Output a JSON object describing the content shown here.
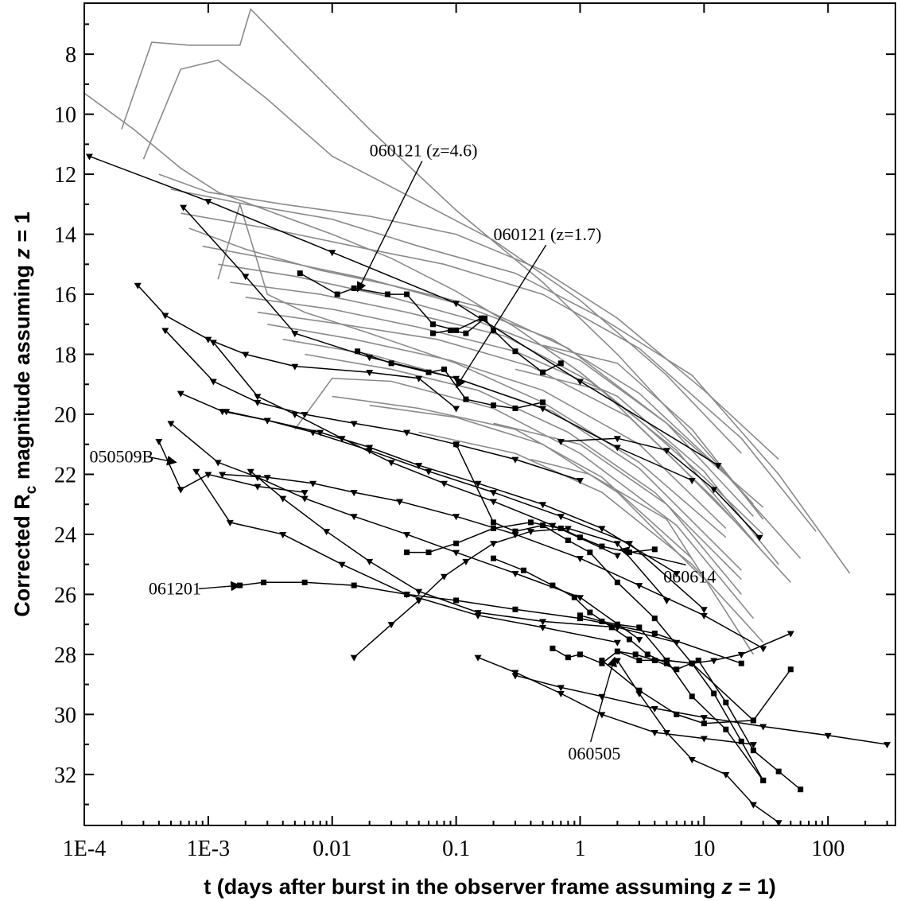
{
  "chart_data": {
    "type": "line",
    "title": "",
    "xlabel_prefix": "t (days after burst in the observer frame assuming ",
    "xlabel_z": "z",
    "xlabel_suffix": " = 1)",
    "ylabel_prefix": "Corrected R",
    "ylabel_sub": "c",
    "ylabel_mid": " magnitude assuming ",
    "ylabel_z": "z",
    "ylabel_suffix": " = 1",
    "xscale": "log",
    "xlim": [
      0.0001,
      350
    ],
    "ylim": [
      33.7,
      6.3
    ],
    "y_inverted": true,
    "x_ticks": [
      0.0001,
      0.001,
      0.01,
      0.1,
      1,
      10,
      100
    ],
    "x_tick_labels": [
      "1E-4",
      "1E-3",
      "0.01",
      "0.1",
      "1",
      "10",
      "100"
    ],
    "y_ticks": [
      8,
      10,
      12,
      14,
      16,
      18,
      20,
      22,
      24,
      26,
      28,
      30,
      32
    ],
    "y_tick_labels": [
      "8",
      "10",
      "12",
      "14",
      "16",
      "18",
      "20",
      "22",
      "24",
      "26",
      "28",
      "30",
      "32"
    ],
    "legend": "none",
    "grid": false,
    "colors": {
      "pre_swift": "#8a8a8a",
      "swift": "#000000"
    },
    "annotations": [
      {
        "label": "060121 (z=4.6)",
        "text_x": 0.02,
        "text_y": 11.4,
        "tip_x": 0.016,
        "tip_y": 15.9
      },
      {
        "label": "060121 (z=1.7)",
        "text_x": 0.2,
        "text_y": 14.2,
        "tip_x": 0.1,
        "tip_y": 19.1
      },
      {
        "label": "050509B",
        "text_x": 0.00011,
        "text_y": 21.6,
        "tip_x": 0.00055,
        "tip_y": 21.6
      },
      {
        "label": "060614",
        "text_x": 4.7,
        "text_y": 25.6,
        "tip_x": 2.1,
        "tip_y": 24.5
      },
      {
        "label": "061201",
        "text_x": 0.00033,
        "text_y": 26.0,
        "tip_x": 0.0018,
        "tip_y": 25.7
      },
      {
        "label": "060505",
        "text_x": 0.8,
        "text_y": 31.5,
        "tip_x": 1.9,
        "tip_y": 28.1
      }
    ],
    "gray_series": [
      {
        "x": [
          0.0001,
          0.00025,
          0.0006,
          0.0012,
          0.004,
          0.01,
          0.03,
          0.1,
          0.3,
          1,
          3,
          10,
          30
        ],
        "y": [
          9.3,
          10.5,
          11.8,
          12.6,
          13.4,
          14.0,
          14.8,
          15.9,
          17.1,
          18.6,
          20.2,
          22.1,
          24.0
        ]
      },
      {
        "x": [
          0.0002,
          0.00035,
          0.0007,
          0.0018,
          0.0022,
          0.005,
          0.02,
          0.1,
          0.5,
          2,
          8,
          25
        ],
        "y": [
          10.5,
          7.6,
          7.7,
          7.7,
          6.5,
          8.0,
          10.5,
          13.2,
          15.6,
          18.0,
          20.7,
          23.0
        ]
      },
      {
        "x": [
          0.0003,
          0.0006,
          0.0012,
          0.003,
          0.01,
          0.05,
          0.2,
          1,
          5,
          20
        ],
        "y": [
          11.5,
          8.5,
          8.2,
          9.5,
          11.4,
          12.9,
          14.2,
          16.2,
          18.7,
          21.3
        ]
      },
      {
        "x": [
          0.0004,
          0.001,
          0.004,
          0.02,
          0.1,
          0.5,
          2,
          10,
          40
        ],
        "y": [
          12.0,
          12.6,
          13.0,
          13.4,
          14.0,
          15.2,
          16.8,
          19.2,
          21.5
        ]
      },
      {
        "x": [
          0.0005,
          0.002,
          0.01,
          0.05,
          0.3,
          1.5,
          8,
          40,
          150
        ],
        "y": [
          12.5,
          13.0,
          13.5,
          14.4,
          15.3,
          16.8,
          18.7,
          22.0,
          25.3
        ]
      },
      {
        "x": [
          0.0006,
          0.003,
          0.015,
          0.08,
          0.5,
          3,
          20,
          80
        ],
        "y": [
          13.3,
          13.8,
          14.4,
          15.0,
          16.0,
          17.8,
          20.8,
          23.9
        ]
      },
      {
        "x": [
          0.0007,
          0.002,
          0.008,
          0.03,
          0.15,
          0.8,
          5,
          30
        ],
        "y": [
          13.8,
          14.5,
          15.2,
          15.7,
          16.4,
          17.8,
          20.3,
          23.1
        ]
      },
      {
        "x": [
          0.0009,
          0.004,
          0.02,
          0.1,
          0.6,
          3,
          15,
          60
        ],
        "y": [
          14.4,
          14.9,
          15.5,
          16.3,
          17.5,
          19.3,
          22.0,
          24.8
        ]
      },
      {
        "x": [
          0.0012,
          0.005,
          0.03,
          0.15,
          1,
          5,
          25
        ],
        "y": [
          15.0,
          15.4,
          16.1,
          16.9,
          18.2,
          20.3,
          23.4
        ]
      },
      {
        "x": [
          0.0015,
          0.008,
          0.04,
          0.25,
          1.2,
          6,
          30
        ],
        "y": [
          15.6,
          16.0,
          16.6,
          17.4,
          18.9,
          21.2,
          24.6
        ]
      },
      {
        "x": [
          0.002,
          0.01,
          0.05,
          0.3,
          2,
          10,
          40
        ],
        "y": [
          16.1,
          16.5,
          17.1,
          17.9,
          19.4,
          21.9,
          25.0
        ]
      },
      {
        "x": [
          0.0025,
          0.012,
          0.07,
          0.4,
          2.5,
          12,
          50
        ],
        "y": [
          16.6,
          17.0,
          17.5,
          18.4,
          20.1,
          22.8,
          25.6
        ]
      },
      {
        "x": [
          0.003,
          0.015,
          0.09,
          0.5,
          3,
          15
        ],
        "y": [
          17.0,
          17.5,
          18.2,
          19.2,
          21.0,
          23.8
        ]
      },
      {
        "x": [
          0.0012,
          0.0018,
          0.003,
          0.006,
          0.02,
          0.1,
          0.5,
          3,
          15
        ],
        "y": [
          15.5,
          13.0,
          16.0,
          16.6,
          17.3,
          18.3,
          19.6,
          21.6,
          24.1
        ]
      },
      {
        "x": [
          0.004,
          0.02,
          0.1,
          0.6,
          3,
          20
        ],
        "y": [
          17.5,
          18.0,
          18.8,
          19.9,
          21.8,
          25.2
        ]
      },
      {
        "x": [
          0.006,
          0.03,
          0.15,
          0.8,
          4,
          20
        ],
        "y": [
          18.0,
          18.5,
          19.2,
          20.6,
          22.6,
          25.5
        ]
      },
      {
        "x": [
          0.005,
          0.01,
          0.03,
          0.2,
          1,
          6,
          25
        ],
        "y": [
          20.5,
          18.8,
          18.9,
          19.8,
          21.3,
          23.7,
          26.8
        ]
      },
      {
        "x": [
          0.01,
          0.05,
          0.3,
          1.5,
          8
        ],
        "y": [
          19.4,
          19.8,
          20.5,
          22.1,
          24.8
        ]
      },
      {
        "x": [
          0.02,
          0.1,
          0.5,
          2,
          10
        ],
        "y": [
          19.7,
          20.1,
          21.0,
          22.6,
          25.5
        ]
      },
      {
        "x": [
          0.05,
          0.3,
          1.5,
          8,
          30
        ],
        "y": [
          20.6,
          21.3,
          22.6,
          25.0,
          27.6
        ]
      },
      {
        "x": [
          0.2,
          1,
          5,
          20
        ],
        "y": [
          20.3,
          21.0,
          23.0,
          26.0
        ]
      },
      {
        "x": [
          0.3,
          1.5,
          6,
          25
        ],
        "y": [
          18.5,
          19.2,
          21.6,
          24.2
        ]
      },
      {
        "x": [
          0.5,
          2,
          8,
          30
        ],
        "y": [
          17.7,
          18.3,
          20.5,
          23.5
        ]
      },
      {
        "x": [
          0.4,
          1.2,
          5,
          25
        ],
        "y": [
          21.5,
          22.0,
          23.5,
          28.0
        ]
      }
    ],
    "black_series": [
      {
        "x": [
          0.00011,
          0.001,
          0.01,
          0.1,
          1,
          13
        ],
        "y": [
          11.4,
          12.9,
          14.6,
          16.3,
          18.9,
          21.7
        ],
        "marker": "tri"
      },
      {
        "x": [
          0.00063,
          0.002,
          0.005,
          0.02,
          0.1,
          0.5,
          2,
          8
        ],
        "y": [
          13.1,
          15.4,
          17.3,
          18.1,
          18.8,
          19.8,
          21.1,
          22.2
        ],
        "marker": "tri"
      },
      {
        "x": [
          0.0055,
          0.011,
          0.015,
          0.028,
          0.04,
          0.065,
          0.1,
          0.16
        ],
        "y": [
          15.3,
          16.0,
          15.8,
          16.0,
          16.0,
          17.0,
          17.2,
          16.8
        ],
        "marker": "sq"
      },
      {
        "x": [
          0.065,
          0.09,
          0.12,
          0.17,
          0.2,
          0.3,
          0.5,
          0.7
        ],
        "y": [
          17.3,
          17.2,
          17.3,
          16.8,
          17.2,
          17.9,
          18.6,
          18.3
        ],
        "marker": "sq"
      },
      {
        "x": [
          0.00027,
          0.00045,
          0.001,
          0.002,
          0.005,
          0.02,
          0.05,
          0.1
        ],
        "y": [
          15.7,
          16.7,
          17.5,
          18.0,
          18.4,
          18.6,
          18.8,
          19.8
        ],
        "marker": "tri"
      },
      {
        "x": [
          0.016,
          0.03,
          0.06,
          0.08,
          0.12,
          0.2,
          0.3,
          0.5
        ],
        "y": [
          17.9,
          18.3,
          18.6,
          18.5,
          19.5,
          19.7,
          19.8,
          19.6
        ],
        "marker": "sq"
      },
      {
        "x": [
          0.00045,
          0.0011,
          0.0025,
          0.006,
          0.015,
          0.04,
          0.1,
          0.3,
          1
        ],
        "y": [
          17.2,
          18.9,
          19.6,
          20.0,
          20.3,
          20.6,
          21.0,
          21.5,
          22.2
        ],
        "marker": "tri"
      },
      {
        "x": [
          0.0006,
          0.0013,
          0.003,
          0.008,
          0.02,
          0.05,
          0.15,
          0.5,
          1.5,
          6
        ],
        "y": [
          19.3,
          19.9,
          20.2,
          20.6,
          21.1,
          21.7,
          22.3,
          23.0,
          23.8,
          25.3
        ],
        "marker": "tri"
      },
      {
        "x": [
          0.0011,
          0.0025,
          0.005,
          0.012,
          0.03,
          0.08,
          0.2,
          0.6,
          2
        ],
        "y": [
          17.6,
          19.4,
          20.0,
          20.8,
          21.6,
          22.3,
          22.9,
          23.7,
          24.7
        ],
        "marker": "tri"
      },
      {
        "x": [
          0.0014,
          0.003,
          0.007,
          0.02,
          0.06,
          0.2,
          0.7,
          2.5,
          10
        ],
        "y": [
          19.9,
          20.2,
          20.6,
          21.2,
          21.9,
          22.6,
          23.4,
          24.3,
          26.5
        ],
        "marker": "tri"
      },
      {
        "x": [
          0.0004,
          0.0006
        ],
        "y": [
          20.9,
          22.5
        ],
        "marker": "tri"
      },
      {
        "x": [
          0.0006,
          0.001,
          0.0025,
          0.006
        ],
        "y": [
          22.5,
          22.0,
          22.4,
          22.6
        ],
        "marker": "tri"
      },
      {
        "x": [
          0.0005,
          0.0012,
          0.0025,
          0.006,
          0.015,
          0.04,
          0.1,
          0.3,
          1,
          3
        ],
        "y": [
          20.3,
          21.6,
          22.1,
          22.8,
          23.4,
          24.0,
          24.6,
          25.3,
          26.1,
          27.5
        ],
        "marker": "tri"
      },
      {
        "x": [
          0.0008,
          0.0015,
          0.004,
          0.012,
          0.04,
          0.15,
          0.5,
          2
        ],
        "y": [
          21.9,
          23.6,
          24.0,
          25.0,
          26.0,
          26.7,
          27.1,
          27.6
        ],
        "marker": "tri"
      },
      {
        "x": [
          0.0018,
          0.0028,
          0.006,
          0.015,
          0.04,
          0.1,
          0.3,
          1,
          4,
          20
        ],
        "y": [
          25.7,
          25.6,
          25.6,
          25.7,
          26.0,
          26.2,
          26.5,
          26.8,
          27.3,
          28.3
        ],
        "marker": "sq"
      },
      {
        "x": [
          0.0022,
          0.004,
          0.009,
          0.02,
          0.05,
          0.15,
          0.5,
          2,
          6
        ],
        "y": [
          21.9,
          22.8,
          23.9,
          24.9,
          25.9,
          26.6,
          26.9,
          27.1,
          27.6
        ],
        "marker": "tri"
      },
      {
        "x": [
          0.0013,
          0.003,
          0.007,
          0.015,
          0.035,
          0.1,
          0.3,
          1,
          3,
          10,
          30
        ],
        "y": [
          22.0,
          22.1,
          22.3,
          22.6,
          22.9,
          23.4,
          24.0,
          24.8,
          25.7,
          26.7,
          27.8
        ],
        "marker": "tri"
      },
      {
        "x": [
          0.015,
          0.03,
          0.05,
          0.08,
          0.12,
          0.2,
          0.4,
          0.8,
          2,
          5
        ],
        "y": [
          28.1,
          27.0,
          26.2,
          25.4,
          24.9,
          24.3,
          23.9,
          23.8,
          24.3,
          26.2
        ],
        "marker": "tri"
      },
      {
        "x": [
          0.04,
          0.06,
          0.1,
          0.2,
          0.4,
          0.7,
          1,
          1.5,
          2.5,
          4
        ],
        "y": [
          24.6,
          24.6,
          24.3,
          23.8,
          23.6,
          23.8,
          24.1,
          24.4,
          24.6,
          24.5
        ],
        "marker": "sq"
      },
      {
        "x": [
          0.1,
          0.2,
          0.3,
          0.5,
          0.8,
          1.2,
          2,
          4,
          8,
          25
        ],
        "y": [
          21.0,
          23.6,
          23.9,
          23.7,
          24.2,
          24.6,
          25.6,
          26.8,
          28.3,
          30.2
        ],
        "marker": "sq"
      },
      {
        "x": [
          0.2,
          0.35,
          0.6,
          0.9,
          1.2,
          1.8,
          2.5,
          3.5,
          5
        ],
        "y": [
          24.8,
          25.2,
          25.7,
          26.1,
          26.6,
          27.1,
          27.5,
          28.0,
          28.3
        ],
        "marker": "sq"
      },
      {
        "x": [
          0.6,
          0.8,
          1,
          1.5,
          2,
          3,
          5,
          8,
          12,
          20,
          30
        ],
        "y": [
          27.8,
          28.1,
          28.0,
          28.3,
          27.9,
          28.2,
          28.2,
          28.3,
          29.3,
          30.9,
          32.2
        ],
        "marker": "sq"
      },
      {
        "x": [
          1,
          1.5,
          2,
          3,
          5,
          8,
          15,
          30
        ],
        "y": [
          26.7,
          26.9,
          27.0,
          27.1,
          28.2,
          29.4,
          30.5,
          32.2
        ],
        "marker": "sq"
      },
      {
        "x": [
          2,
          2.8,
          4,
          6,
          9,
          15,
          25,
          40,
          60
        ],
        "y": [
          27.9,
          28.0,
          28.2,
          28.5,
          28.2,
          29.6,
          31.2,
          31.9,
          32.5
        ],
        "marker": "sq"
      },
      {
        "x": [
          0.15,
          0.3,
          0.7,
          1.5,
          4,
          10,
          25
        ],
        "y": [
          28.1,
          28.6,
          29.3,
          30.0,
          30.6,
          30.8,
          31.0
        ],
        "marker": "tri"
      },
      {
        "x": [
          0.3,
          0.7,
          1.5,
          4,
          10,
          30,
          100,
          300
        ],
        "y": [
          28.7,
          29.1,
          29.4,
          29.8,
          30.1,
          30.4,
          30.7,
          31.0
        ],
        "marker": "tri"
      },
      {
        "x": [
          0.7,
          2,
          5,
          12,
          28
        ],
        "y": [
          20.9,
          20.8,
          21.2,
          22.5,
          24.1
        ],
        "marker": "tri"
      },
      {
        "x": [
          1.5,
          3,
          6,
          10,
          25,
          50
        ],
        "y": [
          28.2,
          29.2,
          30.0,
          30.3,
          30.2,
          28.5
        ],
        "marker": "sq"
      },
      {
        "x": [
          2,
          3,
          5,
          8,
          15,
          25,
          40
        ],
        "y": [
          28.2,
          29.3,
          30.6,
          31.5,
          32.0,
          33.0,
          33.6
        ],
        "marker": "tri"
      },
      {
        "x": [
          5,
          8,
          12,
          20,
          50
        ],
        "y": [
          28.2,
          28.3,
          28.2,
          28.0,
          27.3
        ],
        "marker": "tri"
      }
    ]
  }
}
